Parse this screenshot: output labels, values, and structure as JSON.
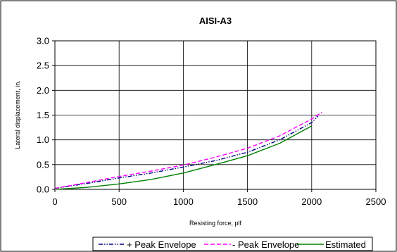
{
  "chart_data": {
    "type": "line",
    "title": "AISI-A3",
    "xlabel": "Resisting force, plf",
    "ylabel": "Lateral displacement, in.",
    "xlim": [
      0,
      2500
    ],
    "ylim": [
      0,
      3.0
    ],
    "x_ticks": [
      "0",
      "500",
      "1000",
      "1500",
      "2000",
      "2500"
    ],
    "y_ticks": [
      "0.0",
      "0.5",
      "1.0",
      "1.5",
      "2.0",
      "2.5",
      "3.0"
    ],
    "grid": true,
    "legend_position": "bottom",
    "series": [
      {
        "name": "+ Peak Envelope",
        "color": "#000080",
        "dash": "dash-dot-dot",
        "x": [
          0,
          250,
          500,
          750,
          1000,
          1250,
          1500,
          1750,
          2000,
          2050
        ],
        "y": [
          0.02,
          0.12,
          0.23,
          0.33,
          0.45,
          0.58,
          0.75,
          1.0,
          1.35,
          1.48
        ]
      },
      {
        "name": "- Peak Envelope",
        "color": "#ff00ff",
        "dash": "dash",
        "x": [
          0,
          250,
          500,
          750,
          1000,
          1250,
          1500,
          1750,
          2000,
          2080
        ],
        "y": [
          0.02,
          0.14,
          0.26,
          0.37,
          0.49,
          0.65,
          0.83,
          1.08,
          1.42,
          1.56
        ]
      },
      {
        "name": "Estimated",
        "color": "#008000",
        "dash": "solid",
        "x": [
          0,
          250,
          500,
          750,
          1000,
          1250,
          1500,
          1750,
          2000
        ],
        "y": [
          0.0,
          0.04,
          0.11,
          0.2,
          0.33,
          0.5,
          0.68,
          0.93,
          1.28
        ]
      }
    ]
  }
}
